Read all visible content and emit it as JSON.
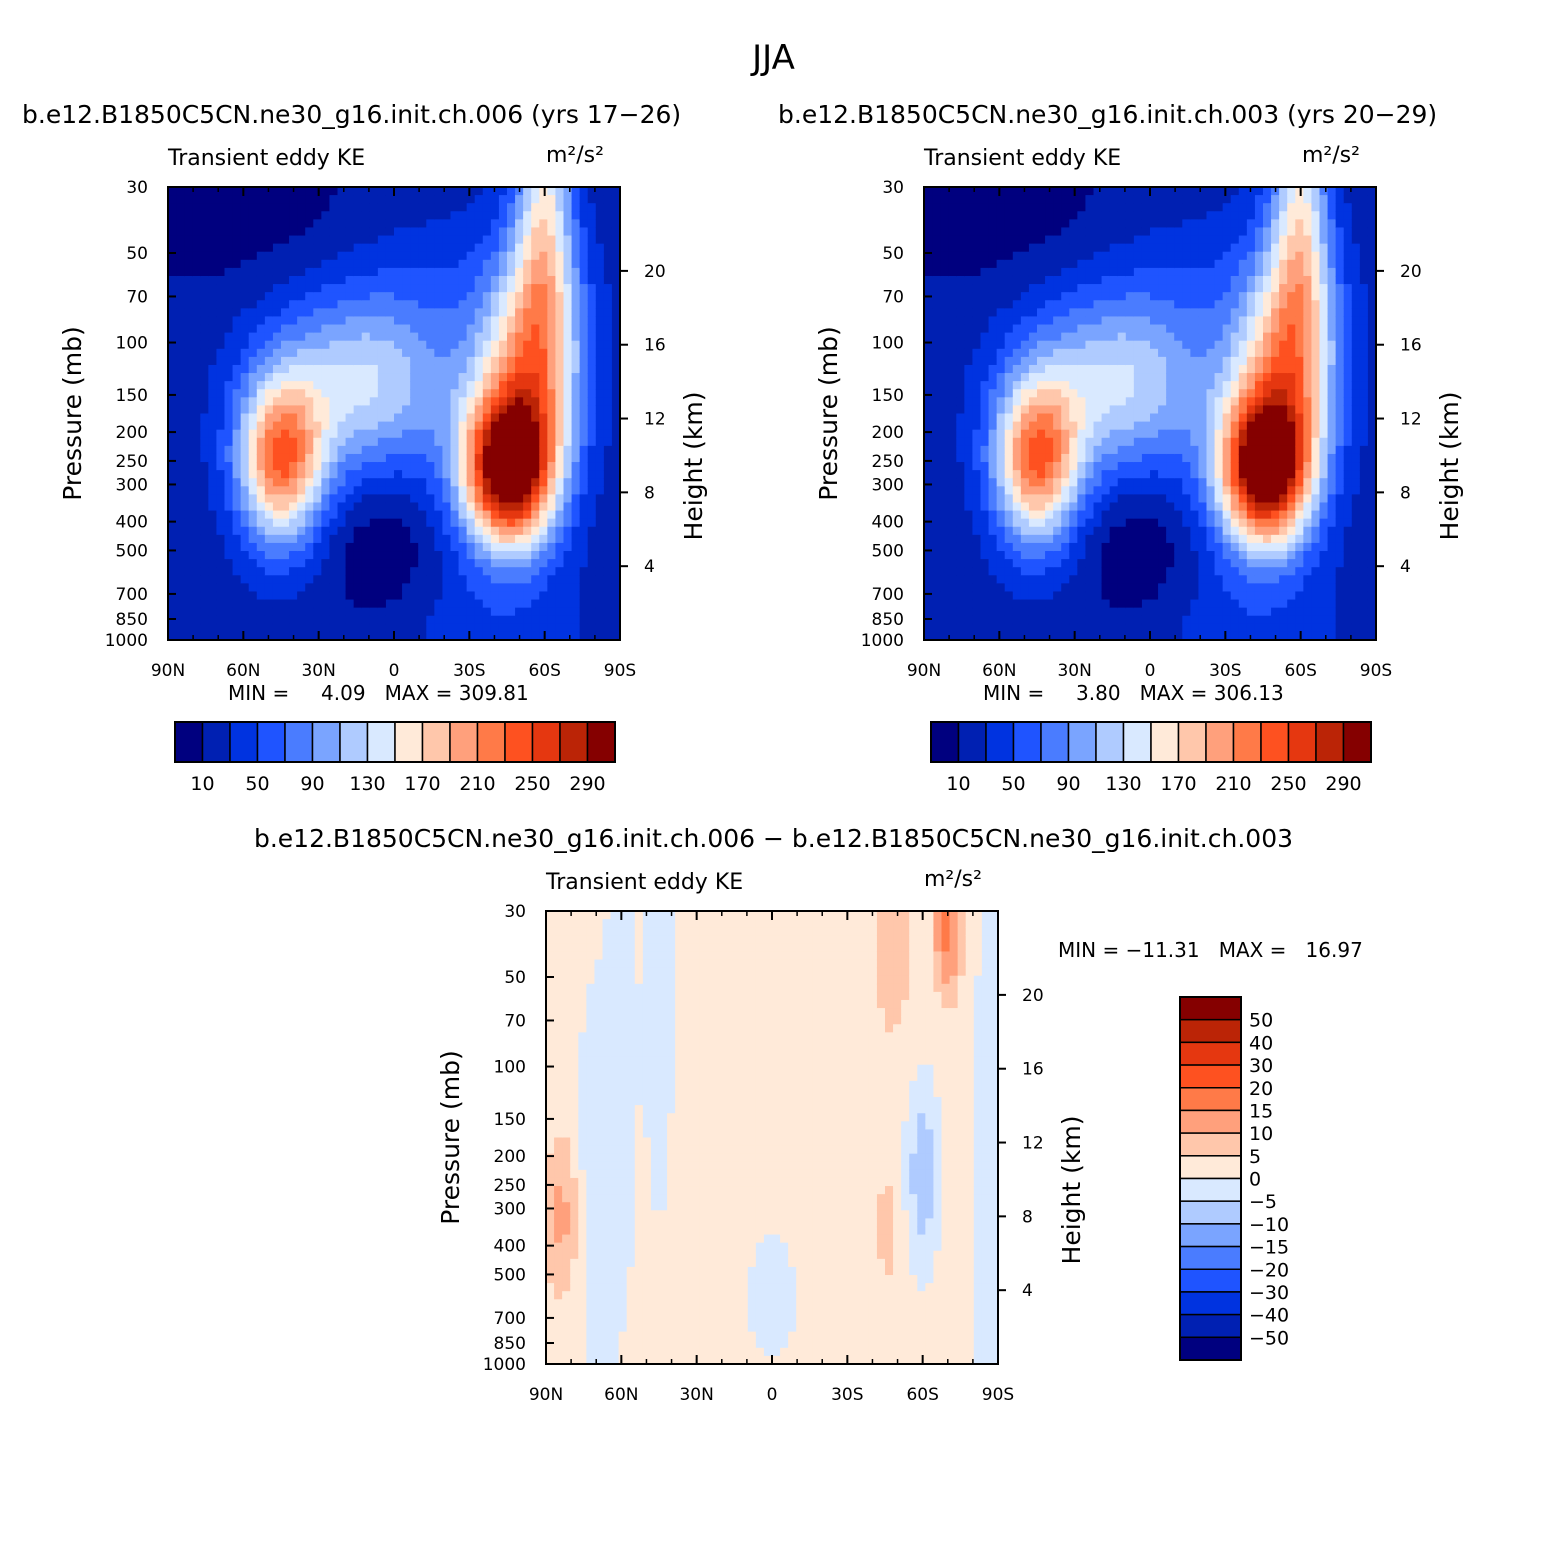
{
  "page_title": "JJA",
  "colors": {
    "levels_abs": [
      "#00007f",
      "#0020b2",
      "#0033e0",
      "#1f54ff",
      "#4a7cff",
      "#7aa4ff",
      "#afcbff",
      "#d9e9ff",
      "#ffead9",
      "#ffc7ab",
      "#ffa07c",
      "#ff7a48",
      "#fe5120",
      "#e53710",
      "#bb2406",
      "#850000"
    ],
    "levels_diff": [
      "#00007f",
      "#0020b2",
      "#0033e0",
      "#1f54ff",
      "#4a7cff",
      "#7aa4ff",
      "#afcbff",
      "#d9e9ff",
      "#ffead9",
      "#ffc7ab",
      "#ffa07c",
      "#ff7a48",
      "#fe5120",
      "#e53710",
      "#bb2406",
      "#850000"
    ]
  },
  "chart_data": [
    {
      "type": "heatmap",
      "title": "b.e12.B1850C5CN.ne30_g16.init.ch.006 (yrs 17−26)",
      "left_label": "Transient eddy KE",
      "units": "m²/s²",
      "ylabel": "Pressure (mb)",
      "y2label": "Height (km)",
      "x_ticks": [
        "90N",
        "60N",
        "30N",
        "0",
        "30S",
        "60S",
        "90S"
      ],
      "y_ticks": [
        "30",
        "50",
        "70",
        "100",
        "150",
        "200",
        "250",
        "300",
        "400",
        "500",
        "700",
        "850",
        "1000"
      ],
      "y2_ticks": [
        "20",
        "16",
        "12",
        "8",
        "4"
      ],
      "min_label": "MIN =",
      "min_value": "4.09",
      "max_label": "MAX =",
      "max_value": "309.81",
      "colorbar_levels": [
        10,
        30,
        50,
        70,
        90,
        110,
        130,
        150,
        170,
        190,
        210,
        230,
        250,
        270,
        290
      ],
      "colorbar_labels": [
        "10",
        "50",
        "90",
        "130",
        "170",
        "210",
        "250",
        "290"
      ],
      "features": [
        {
          "name": "SH jet maximum",
          "lat": -45,
          "pressure": 270,
          "value": 309.81
        },
        {
          "name": "NH jet maximum",
          "lat": 45,
          "pressure": 250,
          "value": 205
        }
      ]
    },
    {
      "type": "heatmap",
      "title": "b.e12.B1850C5CN.ne30_g16.init.ch.003 (yrs 20−29)",
      "left_label": "Transient eddy KE",
      "units": "m²/s²",
      "ylabel": "Pressure (mb)",
      "y2label": "Height (km)",
      "x_ticks": [
        "90N",
        "60N",
        "30N",
        "0",
        "30S",
        "60S",
        "90S"
      ],
      "y_ticks": [
        "30",
        "50",
        "70",
        "100",
        "150",
        "200",
        "250",
        "300",
        "400",
        "500",
        "700",
        "850",
        "1000"
      ],
      "y2_ticks": [
        "20",
        "16",
        "12",
        "8",
        "4"
      ],
      "min_label": "MIN =",
      "min_value": "3.80",
      "max_label": "MAX =",
      "max_value": "306.13",
      "colorbar_levels": [
        10,
        30,
        50,
        70,
        90,
        110,
        130,
        150,
        170,
        190,
        210,
        230,
        250,
        270,
        290
      ],
      "colorbar_labels": [
        "10",
        "50",
        "90",
        "130",
        "170",
        "210",
        "250",
        "290"
      ],
      "features": [
        {
          "name": "SH jet maximum",
          "lat": -45,
          "pressure": 270,
          "value": 306.13
        },
        {
          "name": "NH jet maximum",
          "lat": 45,
          "pressure": 250,
          "value": 200
        }
      ]
    },
    {
      "type": "heatmap",
      "title": "b.e12.B1850C5CN.ne30_g16.init.ch.006 − b.e12.B1850C5CN.ne30_g16.init.ch.003",
      "left_label": "Transient eddy KE",
      "units": "m²/s²",
      "ylabel": "Pressure (mb)",
      "y2label": "Height (km)",
      "x_ticks": [
        "90N",
        "60N",
        "30N",
        "0",
        "30S",
        "60S",
        "90S"
      ],
      "y_ticks": [
        "30",
        "50",
        "70",
        "100",
        "150",
        "200",
        "250",
        "300",
        "400",
        "500",
        "700",
        "850",
        "1000"
      ],
      "y2_ticks": [
        "20",
        "16",
        "12",
        "8",
        "4"
      ],
      "min_label": "MIN =",
      "min_value": "−11.31",
      "max_label": "MAX =",
      "max_value": "16.97",
      "colorbar_levels": [
        -50,
        -40,
        -30,
        -20,
        -15,
        -10,
        -5,
        0,
        5,
        10,
        15,
        20,
        30,
        40,
        50
      ],
      "colorbar_labels": [
        "50",
        "40",
        "30",
        "20",
        "15",
        "10",
        "5",
        "0",
        "−5",
        "−10",
        "−15",
        "−20",
        "−30",
        "−40",
        "−50"
      ],
      "features": [
        {
          "name": "positive maximum",
          "lat": -70,
          "pressure": 35,
          "value": 16.97
        },
        {
          "name": "negative minimum",
          "lat": -60,
          "pressure": 220,
          "value": -11.31
        }
      ]
    }
  ]
}
